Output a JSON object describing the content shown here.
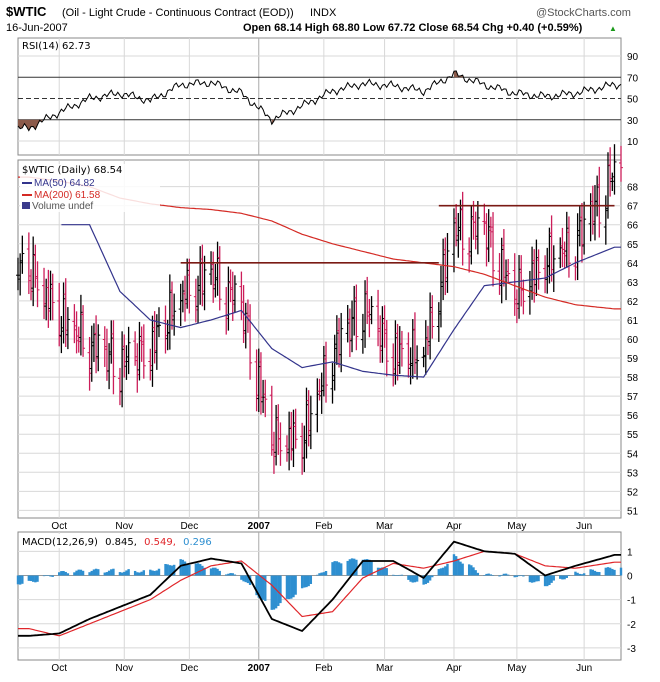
{
  "header": {
    "symbol": "$WTIC",
    "description": "(Oil - Light Crude - Continuous Contract (EOD))",
    "exchange": "INDX",
    "date": "16-Jun-2007",
    "brand": "@StockCharts.com",
    "ohlc_text": "Open 68.14  High 68.80  Low 67.72  Close 68.54  Chg +0.40 (+0.59%)",
    "ohlc_arrow": "▲"
  },
  "rsi_panel": {
    "label": "RSI(14) 62.73",
    "ticks": [
      "90",
      "70",
      "50",
      "30",
      "10"
    ]
  },
  "price_panel": {
    "legend": [
      "$WTIC (Daily) 68.54",
      "MA(50) 64.82",
      "MA(200) 61.58",
      "Volume undef"
    ],
    "ticks": [
      "68",
      "67",
      "66",
      "65",
      "64",
      "63",
      "62",
      "61",
      "60",
      "59",
      "58",
      "57",
      "56",
      "55",
      "54",
      "53",
      "52",
      "51"
    ]
  },
  "macd_panel": {
    "label_prefix": "MACD(12,26,9)",
    "macd_value": "0.845,",
    "signal_value": "0.549,",
    "hist_value": "0.296",
    "ticks": [
      "1",
      "0",
      "-1",
      "-2",
      "-3"
    ]
  },
  "x_axis": {
    "labels": [
      "Oct",
      "Nov",
      "Dec",
      "2007",
      "Feb",
      "Mar",
      "Apr",
      "May",
      "Jun"
    ]
  },
  "colors": {
    "up_bar": "#000000",
    "down_bar": "#cc1e5a",
    "ma50": "#33348c",
    "ma200": "#d42a24",
    "rsi_line": "#000000",
    "rsi_fill": "#8b5a4a",
    "macd_line": "#000000",
    "signal_line": "#e0262a",
    "histogram": "#2e8fd0",
    "resistance": "#7a1a14",
    "grid": "#d8d8d8"
  },
  "chart_data": [
    {
      "type": "line",
      "title": "RSI(14) 62.73",
      "x": [
        "2006-09-18",
        "2006-10-02",
        "2006-10-16",
        "2006-10-30",
        "2006-11-13",
        "2006-11-27",
        "2006-12-11",
        "2006-12-25",
        "2007-01-08",
        "2007-01-22",
        "2007-02-05",
        "2007-02-19",
        "2007-03-05",
        "2007-03-19",
        "2007-04-02",
        "2007-04-16",
        "2007-04-30",
        "2007-05-14",
        "2007-05-28",
        "2007-06-15"
      ],
      "series": [
        {
          "name": "RSI(14)",
          "values": [
            22,
            37,
            50,
            55,
            48,
            63,
            65,
            55,
            30,
            43,
            57,
            64,
            62,
            57,
            73,
            63,
            55,
            52,
            55,
            63
          ]
        }
      ],
      "ylim": [
        0,
        100
      ],
      "ref_lines": [
        70,
        50,
        30
      ]
    },
    {
      "type": "candlestick",
      "title": "$WTIC (Daily) 68.54",
      "x": [
        "2006-09-18",
        "2006-10-02",
        "2006-10-16",
        "2006-10-30",
        "2006-11-13",
        "2006-11-27",
        "2006-12-11",
        "2006-12-25",
        "2007-01-08",
        "2007-01-22",
        "2007-02-05",
        "2007-02-19",
        "2007-03-05",
        "2007-03-19",
        "2007-04-02",
        "2007-04-16",
        "2007-04-30",
        "2007-05-14",
        "2007-05-28",
        "2007-06-15"
      ],
      "series": [
        {
          "name": "$WTIC (Daily) 68.54",
          "values": [
            63.5,
            61.0,
            59.5,
            58.5,
            59.3,
            62.0,
            63.2,
            61.5,
            54.5,
            54.5,
            59.0,
            61.5,
            59.0,
            59.0,
            65.5,
            65.5,
            62.0,
            63.8,
            64.8,
            68.54
          ]
        },
        {
          "name": "MA(50) 64.82",
          "values": [
            null,
            null,
            66.0,
            62.5,
            61.0,
            60.6,
            61.0,
            61.5,
            59.5,
            58.5,
            58.8,
            58.3,
            58.1,
            58.0,
            60.5,
            62.8,
            63.0,
            63.2,
            64.0,
            64.82
          ]
        },
        {
          "name": "MA(200) 61.58",
          "values": [
            68.5,
            68.3,
            68.0,
            67.4,
            67.1,
            66.9,
            66.8,
            66.6,
            66.2,
            65.5,
            65.0,
            64.6,
            64.2,
            64.0,
            63.8,
            63.4,
            62.8,
            62.2,
            61.8,
            61.58
          ]
        }
      ],
      "ylim": [
        50.6,
        69.4
      ],
      "resistance_lines": [
        {
          "value": 64.0,
          "from": "2006-11-27",
          "to": "2007-03-26"
        },
        {
          "value": 67.0,
          "from": "2007-03-26",
          "to": "2007-06-15"
        }
      ]
    },
    {
      "type": "line",
      "title": "MACD(12,26,9) 0.845, 0.549, 0.296",
      "x": [
        "2006-09-18",
        "2006-10-02",
        "2006-10-16",
        "2006-10-30",
        "2006-11-13",
        "2006-11-27",
        "2006-12-11",
        "2006-12-25",
        "2007-01-08",
        "2007-01-22",
        "2007-02-05",
        "2007-02-19",
        "2007-03-05",
        "2007-03-19",
        "2007-04-02",
        "2007-04-16",
        "2007-04-30",
        "2007-05-14",
        "2007-05-28",
        "2007-06-15"
      ],
      "series": [
        {
          "name": "MACD(12,26,9)",
          "values": [
            -2.5,
            -2.4,
            -1.8,
            -1.3,
            -0.8,
            0.4,
            0.7,
            0.5,
            -1.8,
            -2.3,
            -1.0,
            0.6,
            0.6,
            -0.1,
            1.4,
            1.0,
            0.9,
            0.0,
            0.4,
            0.85
          ]
        },
        {
          "name": "Signal",
          "values": [
            -2.2,
            -2.5,
            -2.0,
            -1.5,
            -1.0,
            -0.2,
            0.4,
            0.6,
            -0.4,
            -1.7,
            -1.5,
            -0.1,
            0.5,
            0.3,
            0.6,
            1.0,
            0.9,
            0.4,
            0.3,
            0.55
          ]
        },
        {
          "name": "Histogram",
          "values": [
            -0.3,
            0.1,
            0.2,
            0.2,
            0.2,
            0.6,
            0.3,
            -0.1,
            -1.4,
            -0.6,
            0.5,
            0.7,
            0.1,
            -0.4,
            0.8,
            0.0,
            0.0,
            -0.4,
            0.1,
            0.3
          ]
        }
      ],
      "ylim": [
        -3.5,
        1.8
      ]
    }
  ]
}
